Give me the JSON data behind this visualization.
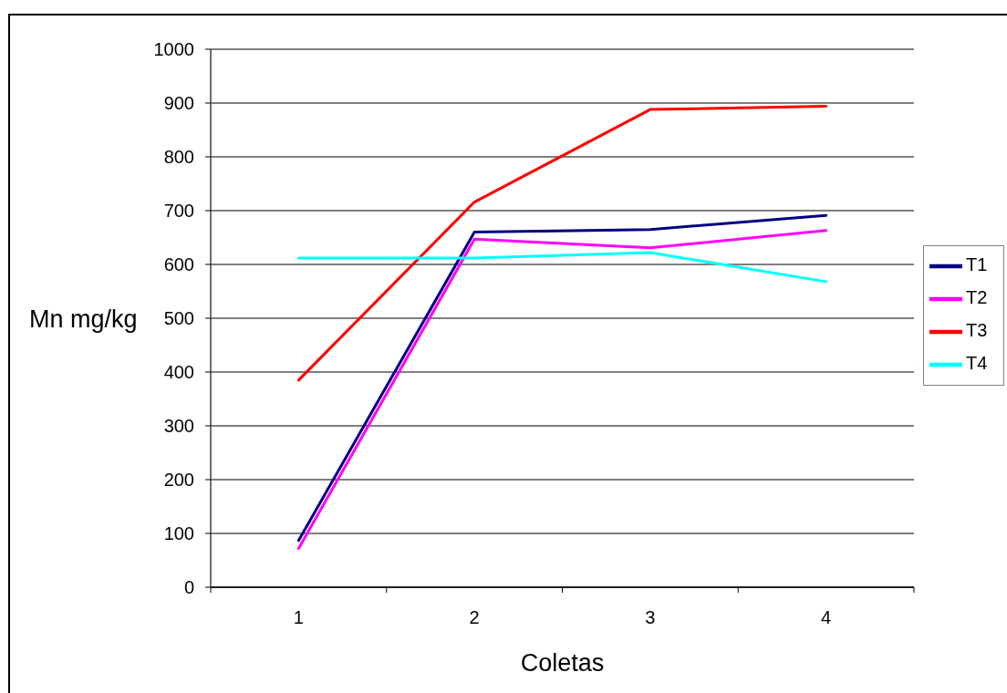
{
  "chart_data": {
    "type": "line",
    "xlabel": "Coletas",
    "ylabel": "Mn mg/kg",
    "categories": [
      "1",
      "2",
      "3",
      "4"
    ],
    "series": [
      {
        "name": "T1",
        "color": "#000080",
        "values": [
          87,
          660,
          665,
          691
        ]
      },
      {
        "name": "T2",
        "color": "#ff00ff",
        "values": [
          72,
          647,
          631,
          663
        ]
      },
      {
        "name": "T3",
        "color": "#ff0000",
        "values": [
          385,
          716,
          888,
          894
        ]
      },
      {
        "name": "T4",
        "color": "#00ffff",
        "values": [
          612,
          612,
          622,
          568
        ]
      }
    ],
    "ylim": [
      0,
      1000
    ],
    "yticks": [
      0,
      100,
      200,
      300,
      400,
      500,
      600,
      700,
      800,
      900,
      1000
    ],
    "grid": "y",
    "legend": "right",
    "marker": "none"
  }
}
